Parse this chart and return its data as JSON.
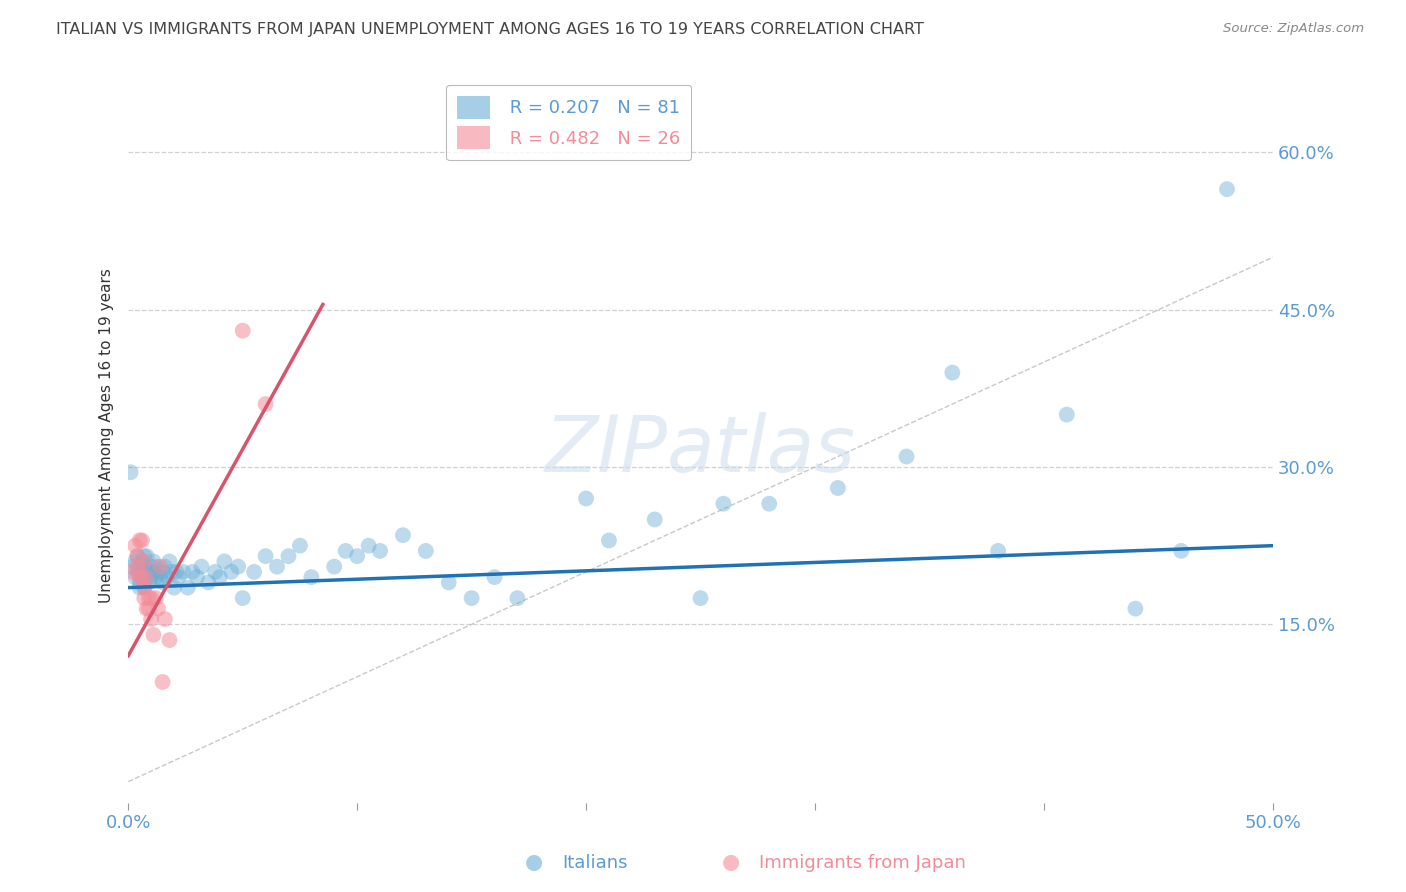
{
  "title": "ITALIAN VS IMMIGRANTS FROM JAPAN UNEMPLOYMENT AMONG AGES 16 TO 19 YEARS CORRELATION CHART",
  "source": "Source: ZipAtlas.com",
  "ylabel": "Unemployment Among Ages 16 to 19 years",
  "xlim": [
    0.0,
    0.5
  ],
  "ylim": [
    -0.02,
    0.68
  ],
  "yticks": [
    0.15,
    0.3,
    0.45,
    0.6
  ],
  "ytick_labels": [
    "15.0%",
    "30.0%",
    "45.0%",
    "60.0%"
  ],
  "xticks": [
    0.0,
    0.1,
    0.2,
    0.3,
    0.4,
    0.5
  ],
  "xtick_labels": [
    "0.0%",
    "",
    "",
    "",
    "",
    "50.0%"
  ],
  "italian_color": "#6baed6",
  "japan_color": "#f48b99",
  "italian_line_color": "#2171b5",
  "japan_line_color": "#d9536a",
  "italian_R": 0.207,
  "italian_N": 81,
  "japan_R": 0.482,
  "japan_N": 26,
  "watermark_text": "ZIPatlas",
  "background_color": "#ffffff",
  "title_color": "#444444",
  "ylabel_color": "#333333",
  "tick_label_color": "#5b9bd5",
  "grid_color": "#cccccc",
  "title_fontsize": 11.5,
  "axis_label_fontsize": 11,
  "tick_fontsize": 13,
  "legend_fontsize": 13,
  "italian_x": [
    0.001,
    0.002,
    0.003,
    0.003,
    0.004,
    0.004,
    0.005,
    0.005,
    0.005,
    0.006,
    0.006,
    0.006,
    0.007,
    0.007,
    0.007,
    0.007,
    0.008,
    0.008,
    0.008,
    0.009,
    0.009,
    0.01,
    0.01,
    0.011,
    0.011,
    0.012,
    0.012,
    0.013,
    0.014,
    0.015,
    0.015,
    0.016,
    0.017,
    0.018,
    0.019,
    0.02,
    0.021,
    0.022,
    0.024,
    0.026,
    0.028,
    0.03,
    0.032,
    0.035,
    0.038,
    0.04,
    0.042,
    0.045,
    0.048,
    0.05,
    0.055,
    0.06,
    0.065,
    0.07,
    0.075,
    0.08,
    0.09,
    0.095,
    0.1,
    0.105,
    0.11,
    0.12,
    0.13,
    0.14,
    0.15,
    0.16,
    0.17,
    0.2,
    0.21,
    0.23,
    0.25,
    0.26,
    0.28,
    0.31,
    0.34,
    0.36,
    0.38,
    0.41,
    0.44,
    0.46,
    0.48
  ],
  "italian_y": [
    0.295,
    0.205,
    0.21,
    0.195,
    0.2,
    0.215,
    0.19,
    0.205,
    0.185,
    0.21,
    0.195,
    0.2,
    0.215,
    0.205,
    0.195,
    0.185,
    0.2,
    0.195,
    0.215,
    0.2,
    0.19,
    0.205,
    0.195,
    0.2,
    0.21,
    0.195,
    0.205,
    0.2,
    0.195,
    0.2,
    0.19,
    0.205,
    0.195,
    0.21,
    0.2,
    0.185,
    0.2,
    0.195,
    0.2,
    0.185,
    0.2,
    0.195,
    0.205,
    0.19,
    0.2,
    0.195,
    0.21,
    0.2,
    0.205,
    0.175,
    0.2,
    0.215,
    0.205,
    0.215,
    0.225,
    0.195,
    0.205,
    0.22,
    0.215,
    0.225,
    0.22,
    0.235,
    0.22,
    0.19,
    0.175,
    0.195,
    0.175,
    0.27,
    0.23,
    0.25,
    0.175,
    0.265,
    0.265,
    0.28,
    0.31,
    0.39,
    0.22,
    0.35,
    0.165,
    0.22,
    0.565
  ],
  "japan_x": [
    0.002,
    0.003,
    0.004,
    0.004,
    0.005,
    0.005,
    0.006,
    0.006,
    0.007,
    0.007,
    0.007,
    0.008,
    0.008,
    0.009,
    0.009,
    0.01,
    0.01,
    0.011,
    0.012,
    0.013,
    0.014,
    0.015,
    0.016,
    0.018,
    0.05,
    0.06
  ],
  "japan_y": [
    0.2,
    0.225,
    0.215,
    0.205,
    0.23,
    0.195,
    0.23,
    0.195,
    0.21,
    0.185,
    0.175,
    0.195,
    0.165,
    0.175,
    0.165,
    0.175,
    0.155,
    0.14,
    0.175,
    0.165,
    0.205,
    0.095,
    0.155,
    0.135,
    0.43,
    0.36
  ]
}
